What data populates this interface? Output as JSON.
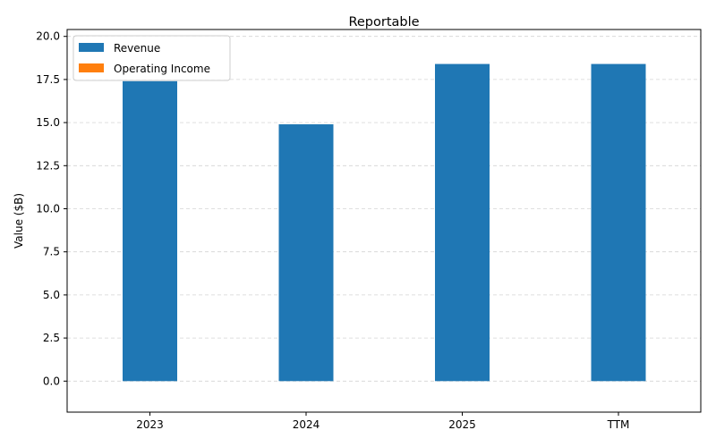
{
  "chart_data": {
    "type": "bar",
    "title": "Reportable",
    "xlabel": "",
    "ylabel": "Value ($B)",
    "categories": [
      "2023",
      "2024",
      "2025",
      "TTM"
    ],
    "series": [
      {
        "name": "Revenue",
        "color": "#1f77b4",
        "values": [
          17.4,
          14.9,
          18.4,
          18.4
        ]
      },
      {
        "name": "Operating Income",
        "color": "#ff7f0e",
        "values": [
          0,
          0,
          0,
          0
        ]
      }
    ],
    "ylim": [
      -1.8,
      20.4
    ],
    "yticks": [
      "0.0",
      "2.5",
      "5.0",
      "7.5",
      "10.0",
      "12.5",
      "15.0",
      "17.5",
      "20.0"
    ],
    "grid": true,
    "legend_position": "top-left"
  }
}
